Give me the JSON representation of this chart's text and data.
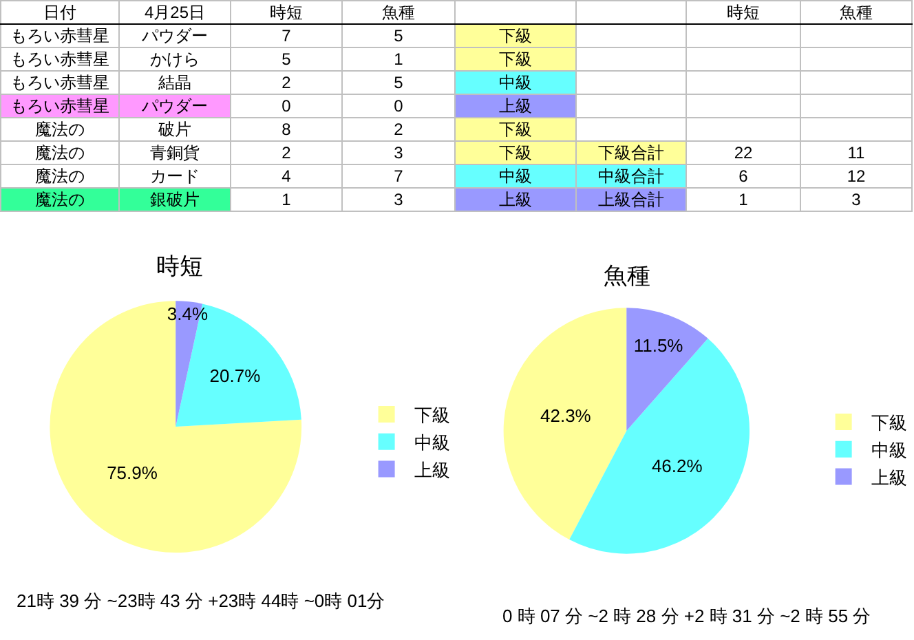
{
  "chart_data": [
    {
      "type": "other",
      "categories": [
        "日付",
        "4月25日",
        "時短",
        "魚種",
        null,
        null,
        "時短",
        "魚種"
      ],
      "cell_labels": [
        [
          "もろい赤彗星",
          "パウダー",
          "7",
          "5",
          "下級",
          null,
          null,
          null
        ],
        [
          "もろい赤彗星",
          "かけら",
          "5",
          "1",
          "下級",
          null,
          null,
          null
        ],
        [
          "もろい赤彗星",
          "結晶",
          "2",
          "5",
          "中級",
          null,
          null,
          null
        ],
        [
          "もろい赤彗星",
          "パウダー",
          "0",
          "0",
          "上級",
          null,
          null,
          null
        ],
        [
          "魔法の",
          "破片",
          "8",
          "2",
          "下級",
          null,
          null,
          null
        ],
        [
          "魔法の",
          "青銅貨",
          "2",
          "3",
          "下級",
          "下級合計",
          "22",
          "11"
        ],
        [
          "魔法の",
          "カード",
          "4",
          "7",
          "中級",
          "中級合計",
          "6",
          "12"
        ],
        [
          "魔法の",
          "銀破片",
          "1",
          "3",
          "上級",
          "上級合計",
          "1",
          "3"
        ]
      ],
      "colors": [
        [
          null,
          null,
          null,
          null,
          "#ffff99",
          null,
          null,
          null
        ],
        [
          null,
          null,
          null,
          null,
          "#ffff99",
          null,
          null,
          null
        ],
        [
          null,
          null,
          null,
          null,
          "#66ffff",
          null,
          null,
          null
        ],
        [
          "#ff99ff",
          "#ff99ff",
          null,
          null,
          "#9999ff",
          null,
          null,
          null
        ],
        [
          null,
          null,
          null,
          null,
          "#ffff99",
          null,
          null,
          null
        ],
        [
          null,
          null,
          null,
          null,
          "#ffff99",
          "#ffff99",
          null,
          null
        ],
        [
          null,
          null,
          null,
          null,
          "#66ffff",
          "#66ffff",
          null,
          null
        ],
        [
          "#33ff99",
          "#33ff99",
          null,
          null,
          "#9999ff",
          "#9999ff",
          null,
          null
        ]
      ]
    },
    {
      "type": "pie",
      "title": "時短",
      "categories": [
        "下級",
        "中級",
        "上級"
      ],
      "values": [
        75.9,
        20.7,
        3.4
      ],
      "colors": [
        "#ffff99",
        "#66ffff",
        "#9999ff"
      ],
      "value_labels": [
        "75.9%",
        "20.7%",
        "3.4%"
      ],
      "legend": "right",
      "annotations": [
        "21時 39 分 ~23時 43 分 +23時 44時 ~0時 01分"
      ]
    },
    {
      "type": "pie",
      "title": "魚種",
      "categories": [
        "下級",
        "中級",
        "上級"
      ],
      "values": [
        42.3,
        46.2,
        11.5
      ],
      "colors": [
        "#ffff99",
        "#66ffff",
        "#9999ff"
      ],
      "value_labels": [
        "42.3%",
        "46.2%",
        "11.5%"
      ],
      "legend": "right",
      "annotations": [
        "0 時 07 分 ~2 時 28 分 +2 時 31 分 ~2 時 55 分"
      ]
    }
  ]
}
